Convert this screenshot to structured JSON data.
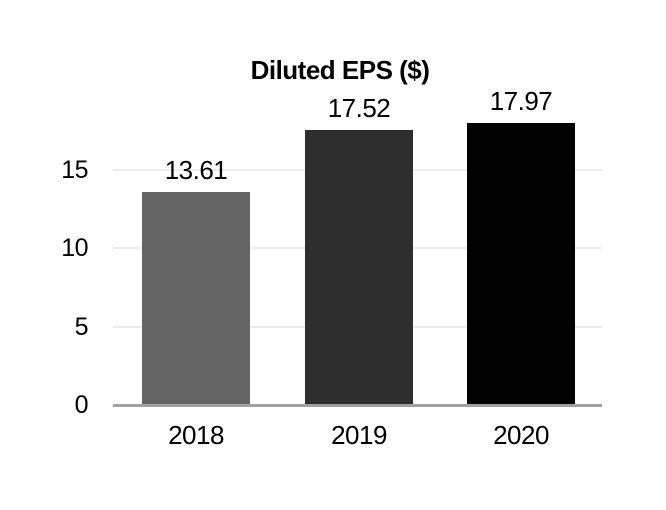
{
  "chart_data": {
    "type": "bar",
    "title": "Diluted EPS ($)",
    "xlabel": "",
    "ylabel": "",
    "categories": [
      "2018",
      "2019",
      "2020"
    ],
    "values": [
      13.61,
      17.52,
      17.97
    ],
    "value_labels": [
      "13.61",
      "17.52",
      "17.97"
    ],
    "bar_colors": [
      "#646464",
      "#2e2e2e",
      "#000000"
    ],
    "y_ticks": [
      0,
      5,
      10,
      15
    ],
    "y_tick_labels": [
      "0",
      "5",
      "10",
      "15"
    ],
    "ylim": [
      0,
      18.8
    ],
    "grid": "horizontal-only",
    "gridline_color": "#ececec",
    "axis_line_color": "#a1a1a1",
    "text_color": "#000000",
    "background_color": "#ffffff",
    "legend_position": "none",
    "data_labels_shown": true
  }
}
